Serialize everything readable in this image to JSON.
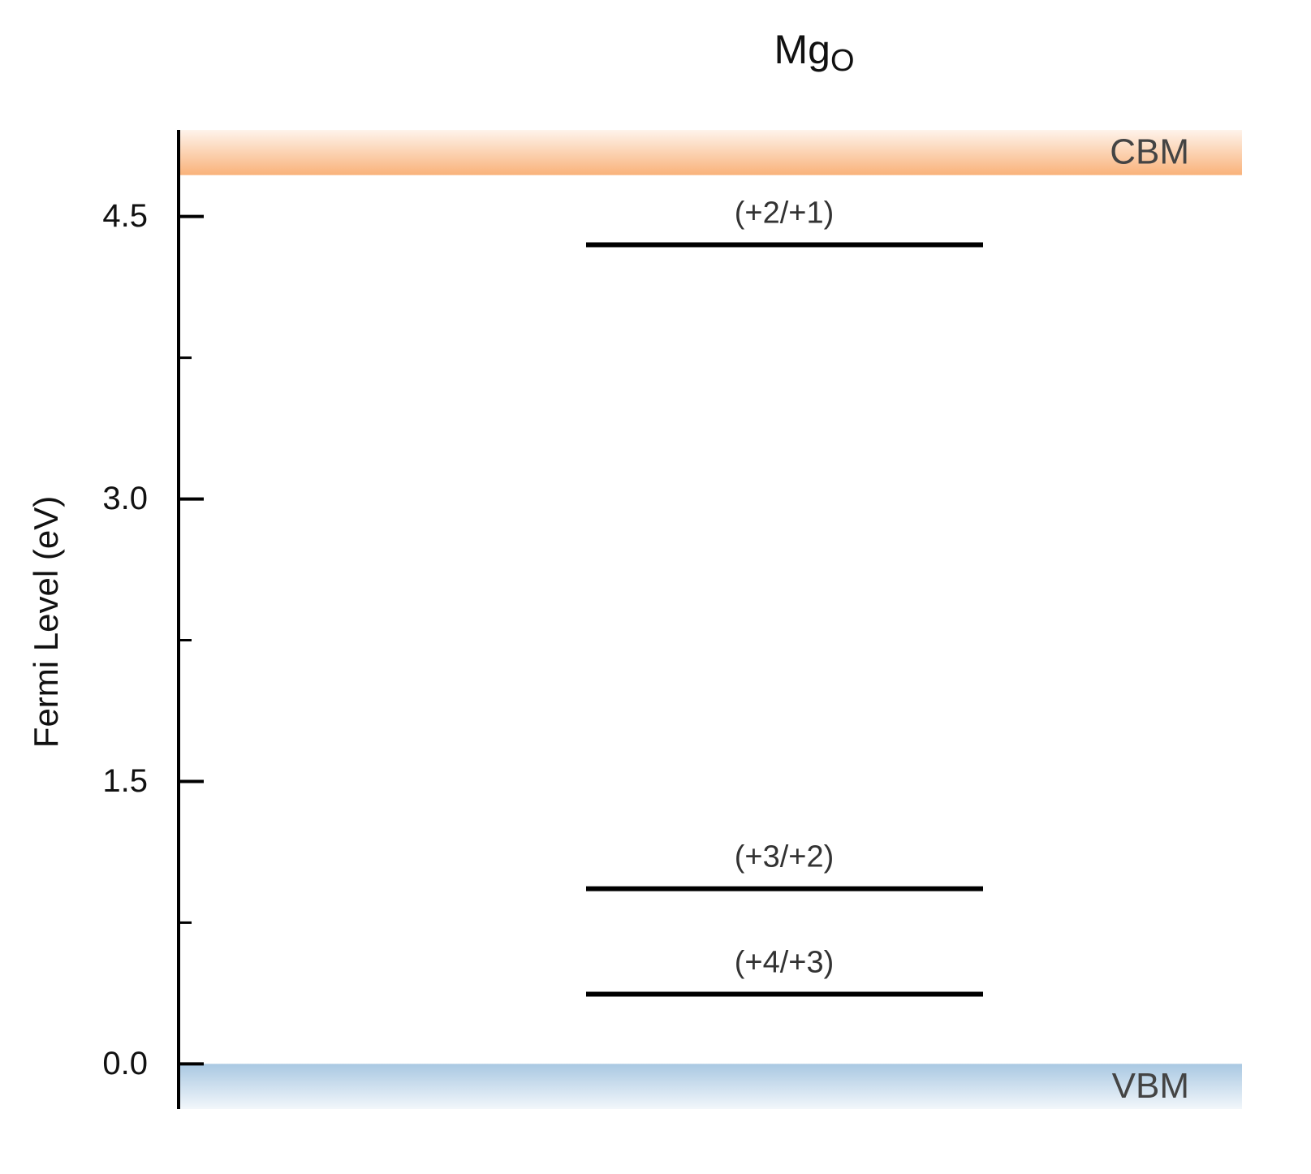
{
  "chart_data": {
    "type": "transition-levels",
    "title": "Mg",
    "title_subscript": "O",
    "y_label": "Fermi Level (eV)",
    "ylim": [
      -0.24,
      4.96
    ],
    "yticks": [
      {
        "value": 0,
        "label": "0.0"
      },
      1.5,
      {
        "value": 3,
        "label": "3.0"
      },
      4.5
    ],
    "minor_yticks": [
      0.75,
      2.25,
      3.75
    ],
    "cbm": {
      "label": "CBM",
      "value": 4.72,
      "color": "#f9b27a"
    },
    "vbm": {
      "label": "VBM",
      "value": 0,
      "color": "#a9c8e2"
    },
    "levels": [
      {
        "label": "(+2/+1)",
        "value": 4.35
      },
      {
        "label": "(+3/+2)",
        "value": 0.93
      },
      {
        "label": "(+4/+3)",
        "value": 0.37
      }
    ],
    "level_color": "#000000"
  }
}
